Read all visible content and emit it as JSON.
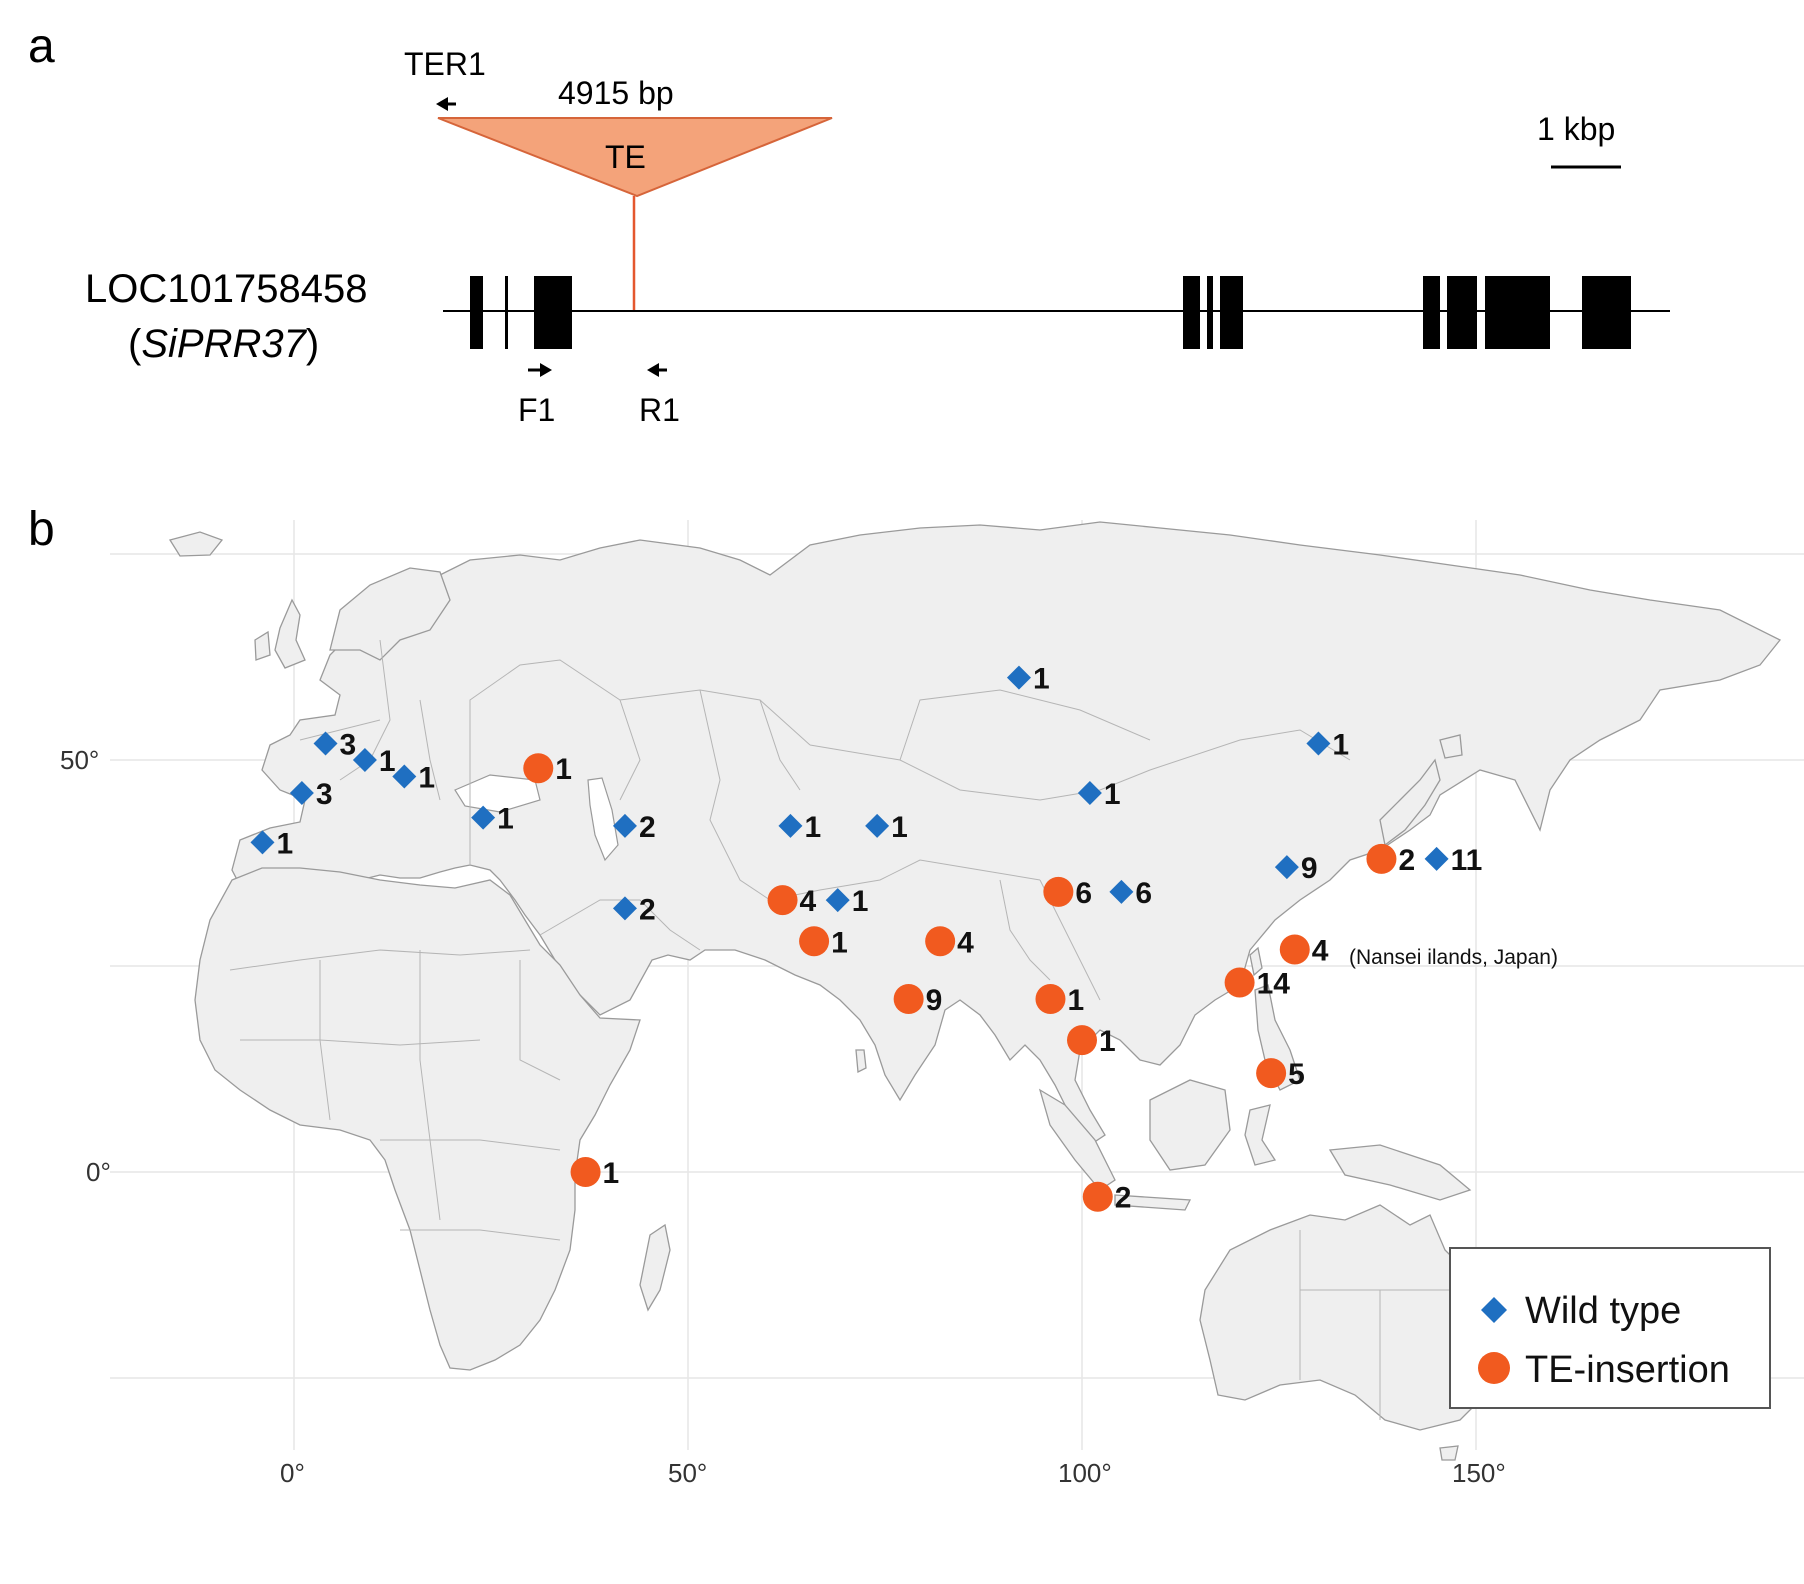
{
  "panel_a": {
    "letter": "a",
    "gene_id": "LOC101758458",
    "gene_name_open": "(",
    "gene_name": "SiPRR37",
    "gene_name_close": ")",
    "te_label": "TE",
    "insert_size": "4915 bp",
    "scale_label": "1 kbp",
    "primers": {
      "ter1": "TER1",
      "f1": "F1",
      "r1": "R1"
    },
    "te_color": "#f4a37a"
  },
  "panel_b": {
    "letter": "b",
    "lat_ticks": [
      "50°",
      "0°"
    ],
    "lon_ticks": [
      "0°",
      "50°",
      "100°",
      "150°"
    ],
    "annotation": "(Nansei ilands, Japan)",
    "legend": [
      {
        "label": "Wild type",
        "marker": "diamond",
        "color": "#1f6fc1"
      },
      {
        "label": "TE-insertion",
        "marker": "circle",
        "color": "#f15a1f"
      }
    ],
    "map_markers": [
      {
        "type": "wild",
        "lon": 4,
        "lat": 52,
        "count": "3"
      },
      {
        "type": "wild",
        "lon": 9,
        "lat": 50,
        "count": "1"
      },
      {
        "type": "wild",
        "lon": 1,
        "lat": 46,
        "count": "3"
      },
      {
        "type": "wild",
        "lon": -4,
        "lat": 40,
        "count": "1"
      },
      {
        "type": "wild",
        "lon": 14,
        "lat": 48,
        "count": "1"
      },
      {
        "type": "wild",
        "lon": 24,
        "lat": 43,
        "count": "1"
      },
      {
        "type": "te",
        "lon": 31,
        "lat": 49,
        "count": "1"
      },
      {
        "type": "wild",
        "lon": 42,
        "lat": 42,
        "count": "2"
      },
      {
        "type": "wild",
        "lon": 42,
        "lat": 32,
        "count": "2"
      },
      {
        "type": "wild",
        "lon": 63,
        "lat": 42,
        "count": "1"
      },
      {
        "type": "wild",
        "lon": 74,
        "lat": 42,
        "count": "1"
      },
      {
        "type": "te",
        "lon": 62,
        "lat": 33,
        "count": "4"
      },
      {
        "type": "wild",
        "lon": 69,
        "lat": 33,
        "count": "1"
      },
      {
        "type": "te",
        "lon": 66,
        "lat": 28,
        "count": "1"
      },
      {
        "type": "te",
        "lon": 82,
        "lat": 28,
        "count": "4"
      },
      {
        "type": "te",
        "lon": 78,
        "lat": 21,
        "count": "9"
      },
      {
        "type": "wild",
        "lon": 92,
        "lat": 60,
        "count": "1"
      },
      {
        "type": "wild",
        "lon": 101,
        "lat": 46,
        "count": "1"
      },
      {
        "type": "te",
        "lon": 97,
        "lat": 34,
        "count": "6"
      },
      {
        "type": "wild",
        "lon": 105,
        "lat": 34,
        "count": "6"
      },
      {
        "type": "te",
        "lon": 96,
        "lat": 21,
        "count": "1"
      },
      {
        "type": "te",
        "lon": 100,
        "lat": 16,
        "count": "1"
      },
      {
        "type": "te",
        "lon": 102,
        "lat": -3,
        "count": "2"
      },
      {
        "type": "te",
        "lon": 37,
        "lat": 0,
        "count": "1"
      },
      {
        "type": "wild",
        "lon": 130,
        "lat": 52,
        "count": "1"
      },
      {
        "type": "wild",
        "lon": 126,
        "lat": 37,
        "count": "9"
      },
      {
        "type": "te",
        "lon": 138,
        "lat": 38,
        "count": "2"
      },
      {
        "type": "wild",
        "lon": 145,
        "lat": 38,
        "count": "11"
      },
      {
        "type": "te",
        "lon": 127,
        "lat": 27,
        "count": "4"
      },
      {
        "type": "te",
        "lon": 120,
        "lat": 23,
        "count": "14"
      },
      {
        "type": "te",
        "lon": 124,
        "lat": 12,
        "count": "5"
      }
    ]
  }
}
